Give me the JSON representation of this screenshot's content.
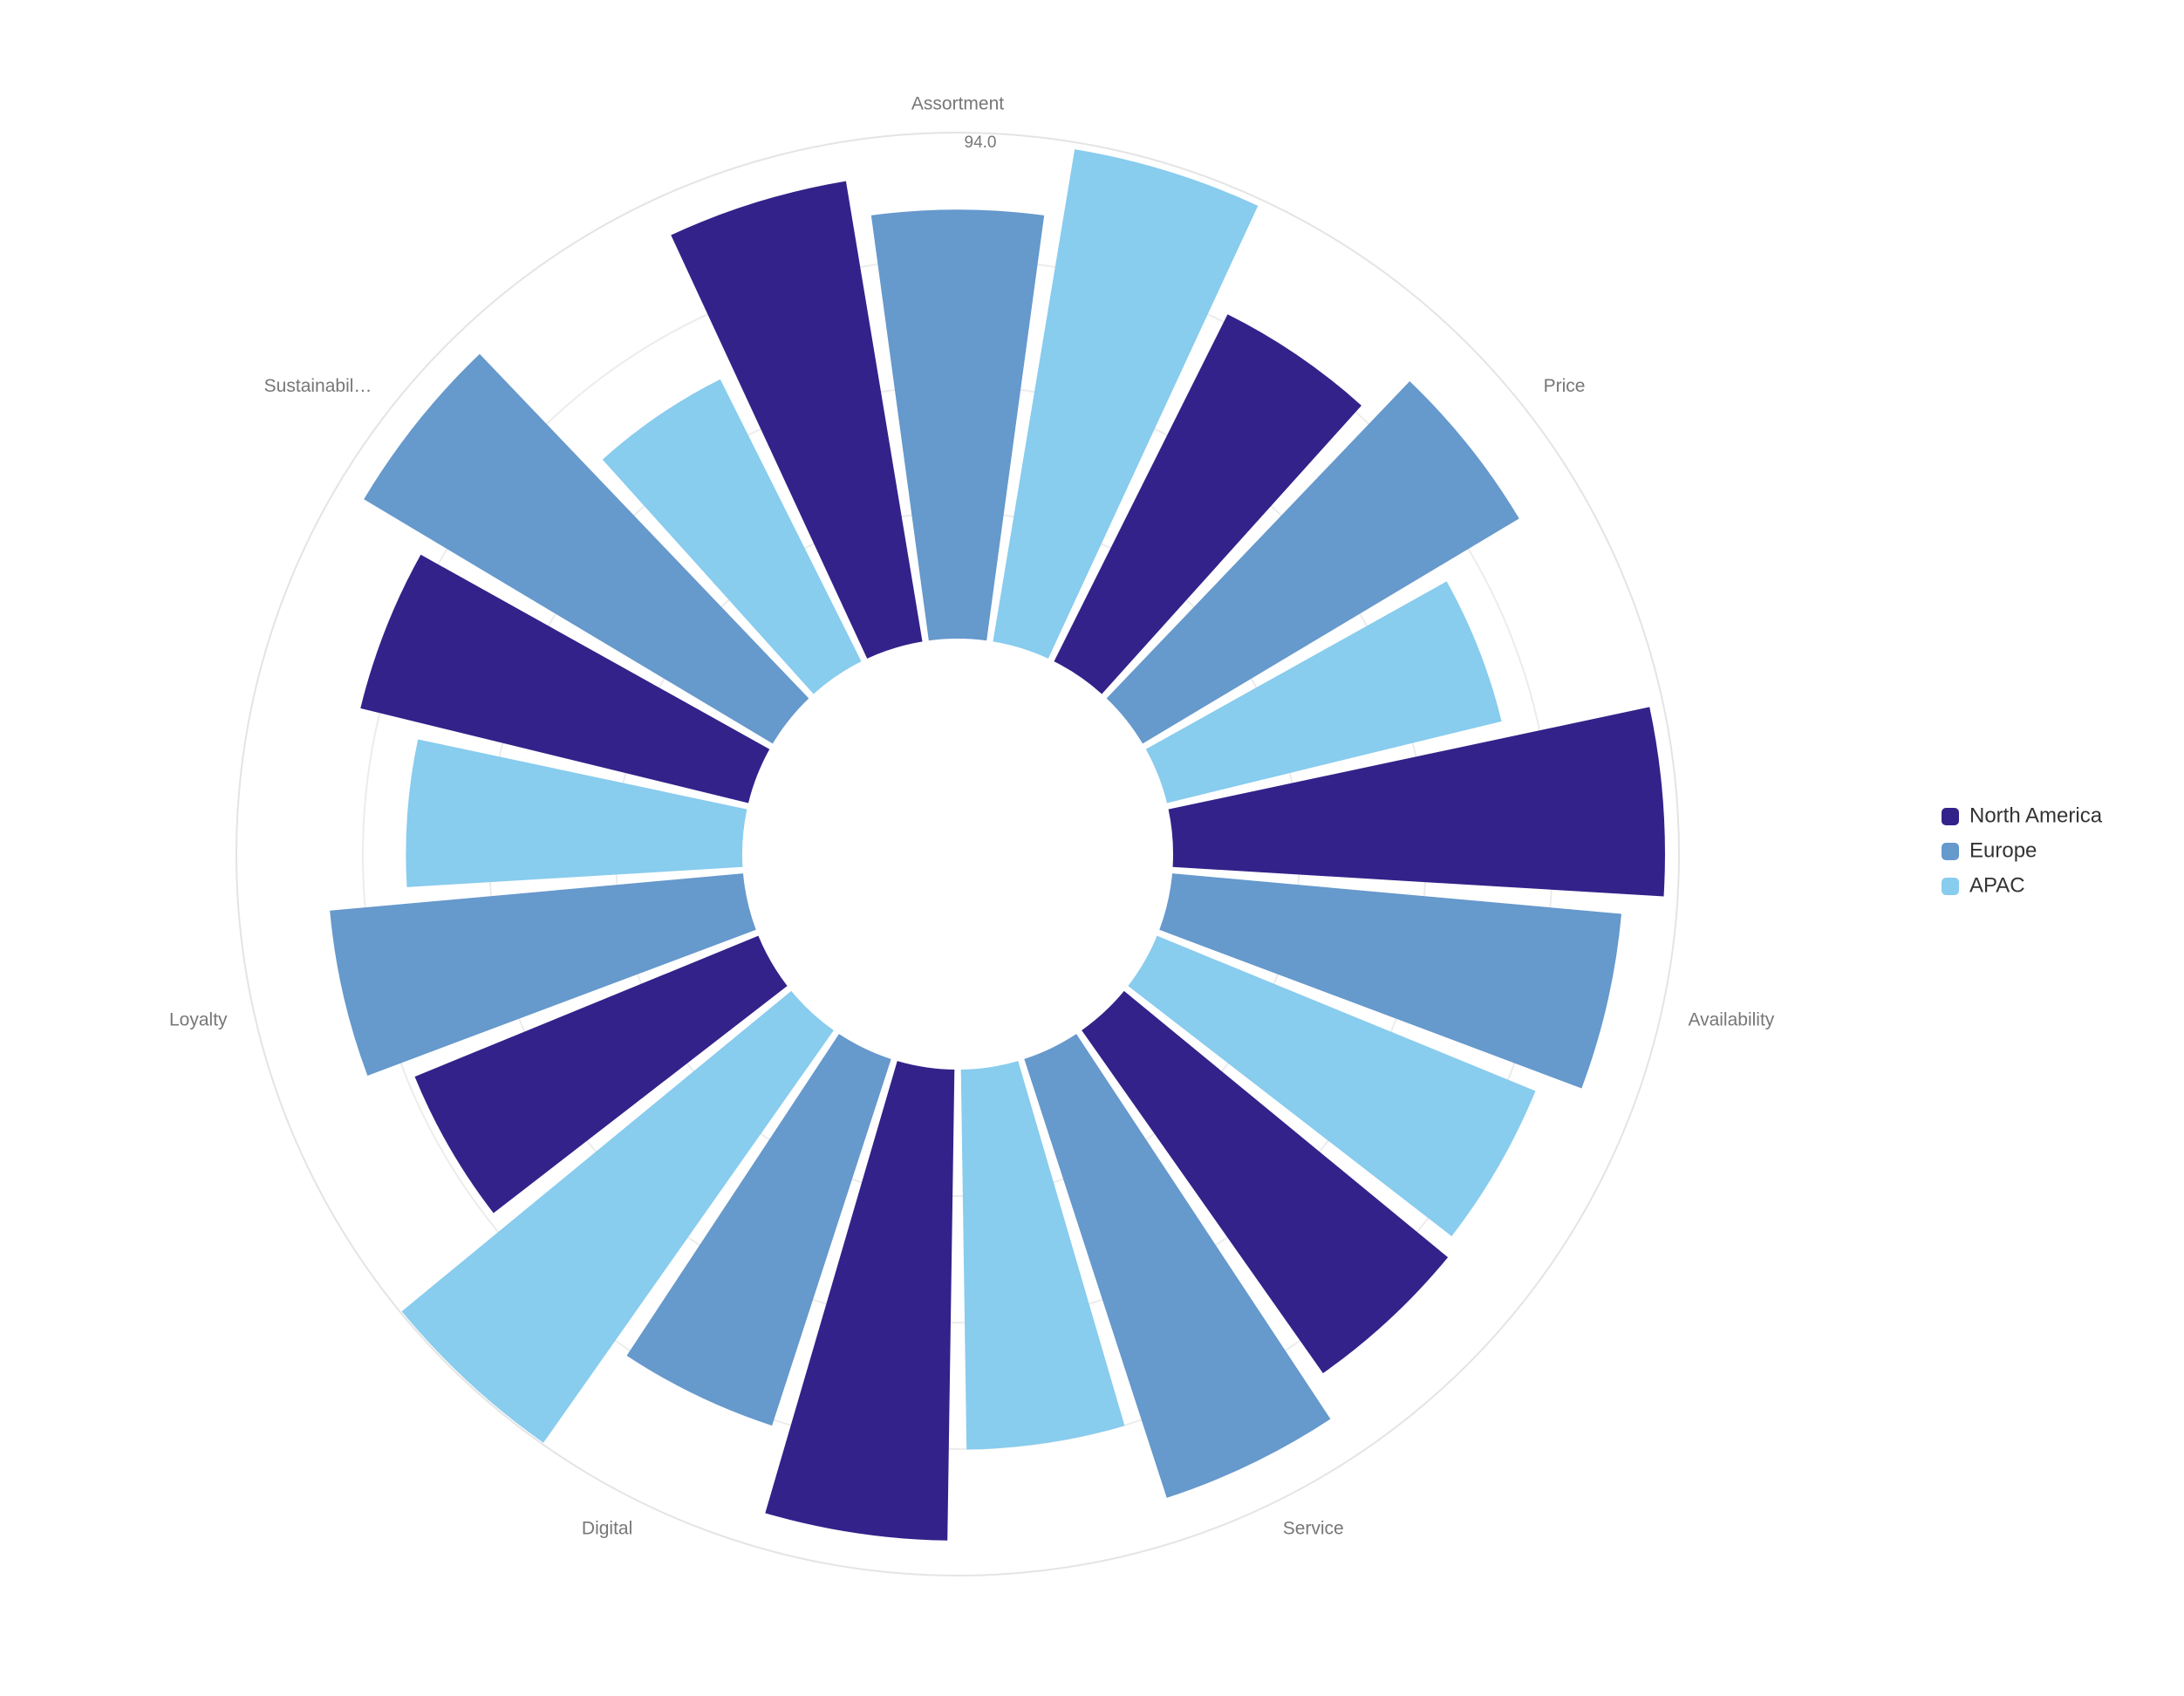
{
  "chart_data": {
    "type": "polar-bar",
    "categories": [
      "Assortment",
      "Price",
      "Availability",
      "Service",
      "Digital",
      "Loyalty",
      "Sustainabil…"
    ],
    "series": [
      {
        "name": "North America",
        "color": "#33228a",
        "values": [
          86.7,
          72.1,
          91.4,
          77.9,
          87.5,
          69.0,
          74.2
        ]
      },
      {
        "name": "Europe",
        "color": "#6699cc",
        "values": [
          79.7,
          81.5,
          83.8,
          85.7,
          71.6,
          77.1,
          88.5
        ]
      },
      {
        "name": "APAC",
        "color": "#88ccee",
        "values": [
          92.7,
          64.0,
          76.0,
          70.6,
          93.7,
          62.5,
          58.6
        ]
      }
    ],
    "ylim": [
      0,
      94
    ],
    "yticks": [
      {
        "value": 94,
        "label": "94.0"
      }
    ],
    "legend": "right"
  }
}
